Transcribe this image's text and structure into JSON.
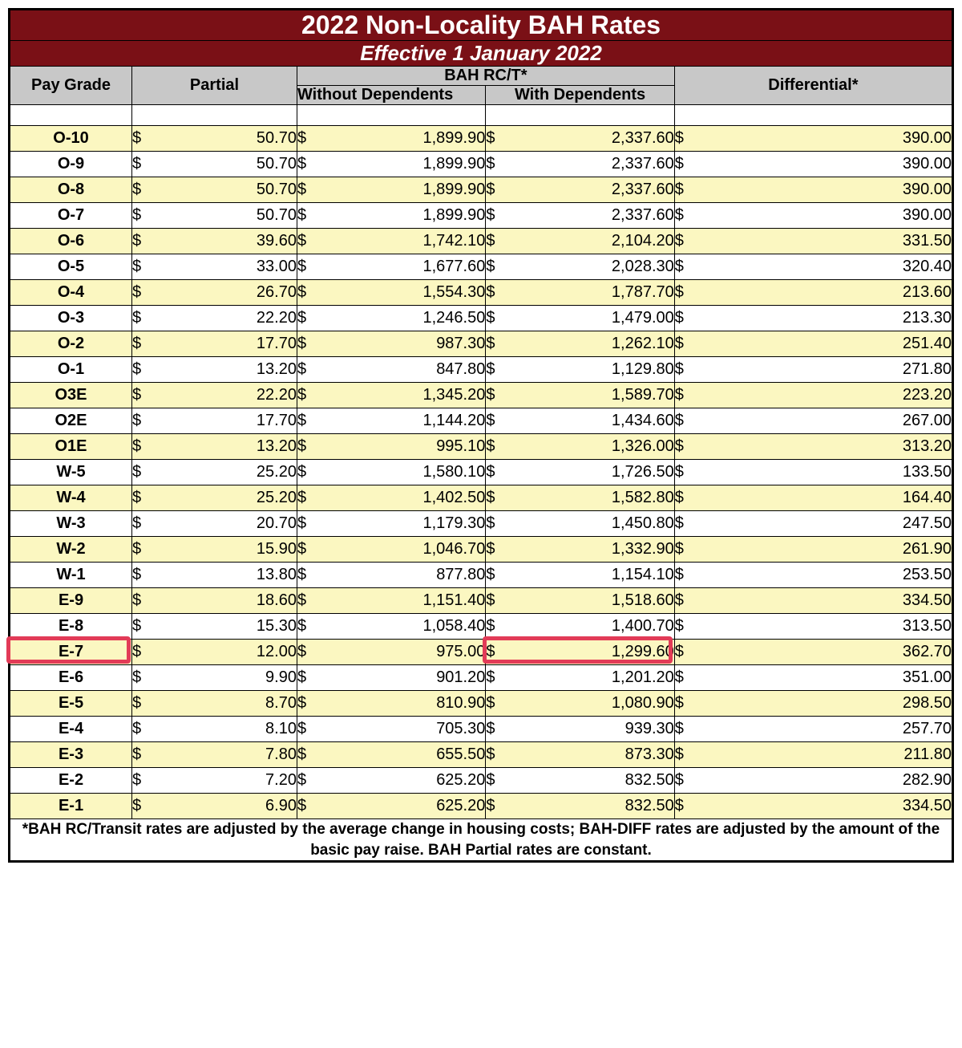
{
  "title": "2022 Non-Locality BAH Rates",
  "effective": "Effective 1 January 2022",
  "columns": {
    "paygrade": "Pay Grade",
    "partial": "Partial",
    "group": "BAH RC/T*",
    "without": "Without Dependents",
    "with": "With Dependents",
    "diff": "Differential*"
  },
  "currency": "$",
  "footnote": "*BAH RC/Transit rates are adjusted by the average change in housing costs;  BAH-DIFF rates are adjusted by the amount of the basic pay raise. BAH Partial rates are constant.",
  "colors": {
    "header_bg": "#7a1016",
    "header_text": "#ffffff",
    "colhead_bg": "#c8c8c8",
    "row_alt": "#fbf7c1",
    "row_plain": "#ffffff",
    "highlight_border": "#e23b57",
    "border": "#000000"
  },
  "col_widths_pct": [
    13,
    17.5,
    20,
    20,
    29.5
  ],
  "highlighted_row_index": 18,
  "rows": [
    {
      "grade": "O-10",
      "partial": "50.70",
      "without": "1,899.90",
      "with": "2,337.60",
      "diff": "390.00"
    },
    {
      "grade": "O-9",
      "partial": "50.70",
      "without": "1,899.90",
      "with": "2,337.60",
      "diff": "390.00"
    },
    {
      "grade": "O-8",
      "partial": "50.70",
      "without": "1,899.90",
      "with": "2,337.60",
      "diff": "390.00"
    },
    {
      "grade": "O-7",
      "partial": "50.70",
      "without": "1,899.90",
      "with": "2,337.60",
      "diff": "390.00"
    },
    {
      "grade": "O-6",
      "partial": "39.60",
      "without": "1,742.10",
      "with": "2,104.20",
      "diff": "331.50"
    },
    {
      "grade": "O-5",
      "partial": "33.00",
      "without": "1,677.60",
      "with": "2,028.30",
      "diff": "320.40"
    },
    {
      "grade": "O-4",
      "partial": "26.70",
      "without": "1,554.30",
      "with": "1,787.70",
      "diff": "213.60"
    },
    {
      "grade": "O-3",
      "partial": "22.20",
      "without": "1,246.50",
      "with": "1,479.00",
      "diff": "213.30"
    },
    {
      "grade": "O-2",
      "partial": "17.70",
      "without": "987.30",
      "with": "1,262.10",
      "diff": "251.40"
    },
    {
      "grade": "O-1",
      "partial": "13.20",
      "without": "847.80",
      "with": "1,129.80",
      "diff": "271.80"
    },
    {
      "grade": "O3E",
      "partial": "22.20",
      "without": "1,345.20",
      "with": "1,589.70",
      "diff": "223.20"
    },
    {
      "grade": "O2E",
      "partial": "17.70",
      "without": "1,144.20",
      "with": "1,434.60",
      "diff": "267.00"
    },
    {
      "grade": "O1E",
      "partial": "13.20",
      "without": "995.10",
      "with": "1,326.00",
      "diff": "313.20"
    },
    {
      "grade": "W-5",
      "partial": "25.20",
      "without": "1,580.10",
      "with": "1,726.50",
      "diff": "133.50"
    },
    {
      "grade": "W-4",
      "partial": "25.20",
      "without": "1,402.50",
      "with": "1,582.80",
      "diff": "164.40"
    },
    {
      "grade": "W-3",
      "partial": "20.70",
      "without": "1,179.30",
      "with": "1,450.80",
      "diff": "247.50"
    },
    {
      "grade": "W-2",
      "partial": "15.90",
      "without": "1,046.70",
      "with": "1,332.90",
      "diff": "261.90"
    },
    {
      "grade": "W-1",
      "partial": "13.80",
      "without": "877.80",
      "with": "1,154.10",
      "diff": "253.50"
    },
    {
      "grade": "E-9",
      "partial": "18.60",
      "without": "1,151.40",
      "with": "1,518.60",
      "diff": "334.50"
    },
    {
      "grade": "E-8",
      "partial": "15.30",
      "without": "1,058.40",
      "with": "1,400.70",
      "diff": "313.50"
    },
    {
      "grade": "E-7",
      "partial": "12.00",
      "without": "975.00",
      "with": "1,299.60",
      "diff": "362.70"
    },
    {
      "grade": "E-6",
      "partial": "9.90",
      "without": "901.20",
      "with": "1,201.20",
      "diff": "351.00"
    },
    {
      "grade": "E-5",
      "partial": "8.70",
      "without": "810.90",
      "with": "1,080.90",
      "diff": "298.50"
    },
    {
      "grade": "E-4",
      "partial": "8.10",
      "without": "705.30",
      "with": "939.30",
      "diff": "257.70"
    },
    {
      "grade": "E-3",
      "partial": "7.80",
      "without": "655.50",
      "with": "873.30",
      "diff": "211.80"
    },
    {
      "grade": "E-2",
      "partial": "7.20",
      "without": "625.20",
      "with": "832.50",
      "diff": "282.90"
    },
    {
      "grade": "E-1",
      "partial": "6.90",
      "without": "625.20",
      "with": "832.50",
      "diff": "334.50"
    }
  ]
}
